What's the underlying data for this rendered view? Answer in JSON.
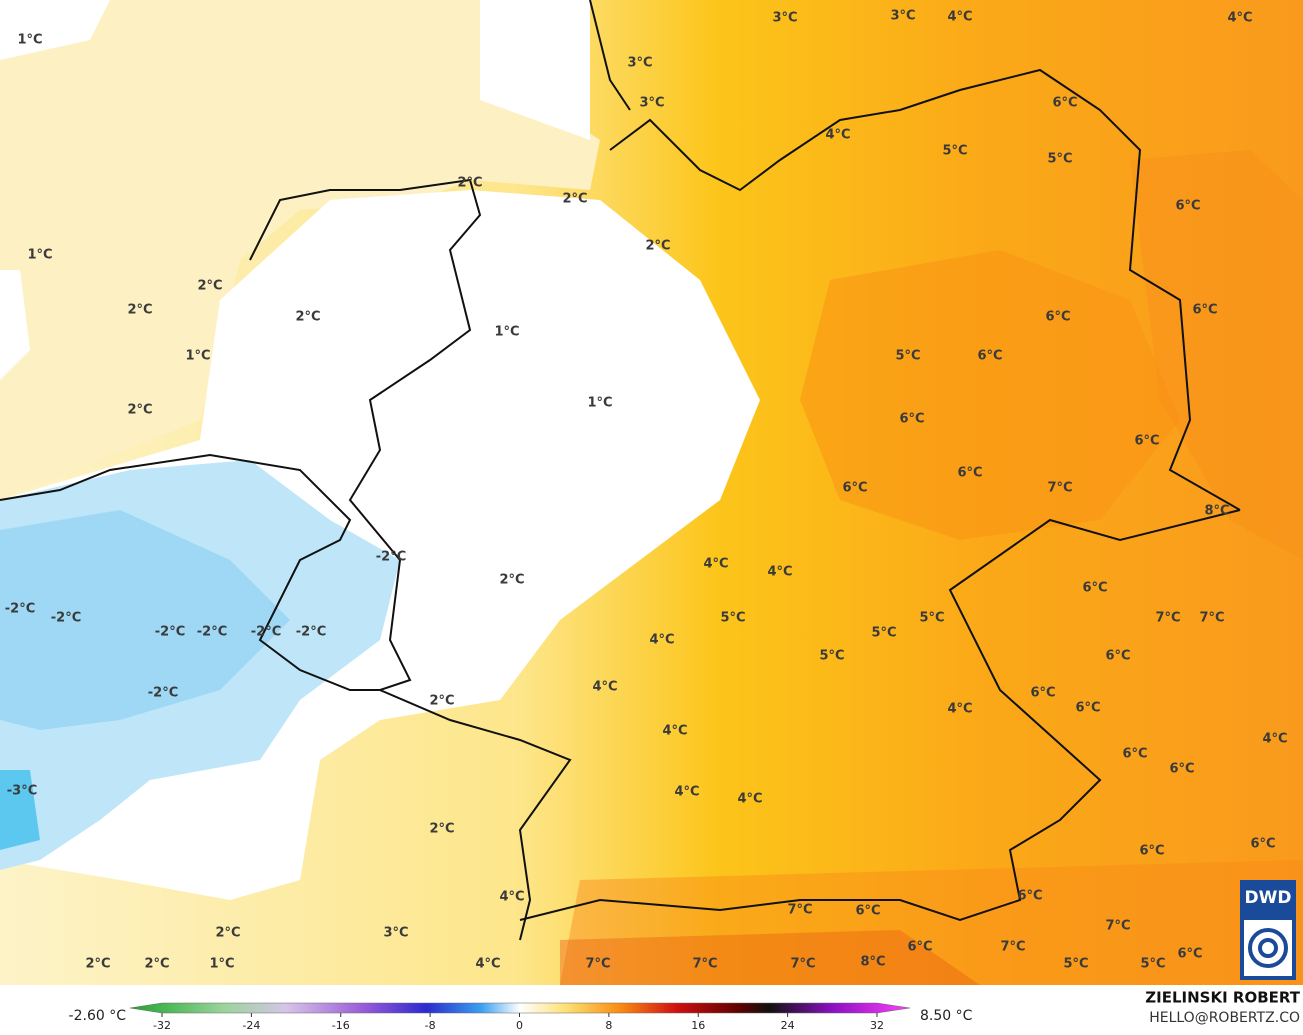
{
  "labels": [
    "1°C",
    "3°C",
    "3°C",
    "4°C",
    "4°C",
    "3°C",
    "3°C",
    "6°C",
    "4°C",
    "5°C",
    "5°C",
    "2°C",
    "2°C",
    "6°C",
    "2°C",
    "1°C",
    "2°C",
    "2°C",
    "6°C",
    "2°C",
    "6°C",
    "1°C",
    "5°C",
    "6°C",
    "1°C",
    "1°C",
    "2°C",
    "6°C",
    "6°C",
    "6°C",
    "6°C",
    "7°C",
    "8°C",
    "-2°C",
    "4°C",
    "4°C",
    "2°C",
    "6°C",
    "-2°C",
    "-2°C",
    "5°C",
    "5°C",
    "7°C",
    "7°C",
    "-2°C",
    "-2°C",
    "-2°C",
    "-2°C",
    "4°C",
    "5°C",
    "5°C",
    "6°C",
    "4°C",
    "-2°C",
    "6°C",
    "6°C",
    "2°C",
    "4°C",
    "4°C",
    "4°C",
    "6°C",
    "6°C",
    "-3°C",
    "4°C",
    "4°C",
    "2°C",
    "6°C",
    "6°C",
    "4°C",
    "6°C",
    "7°C",
    "6°C",
    "7°C",
    "2°C",
    "3°C",
    "6°C",
    "7°C",
    "6°C",
    "2°C",
    "2°C",
    "1°C",
    "4°C",
    "7°C",
    "7°C",
    "7°C",
    "8°C",
    "5°C",
    "5°C"
  ],
  "colorbar": {
    "min_label": "-2.60 °C",
    "max_label": "8.50 °C",
    "range": [
      -32,
      32
    ],
    "ticks": [
      -32,
      -24,
      -16,
      -8,
      0,
      8,
      16,
      24,
      32
    ]
  },
  "credit": {
    "name": "ZIELINSKI ROBERT",
    "contact": "HELLO@ROBERTZ.CO"
  },
  "logo": "DWD"
}
